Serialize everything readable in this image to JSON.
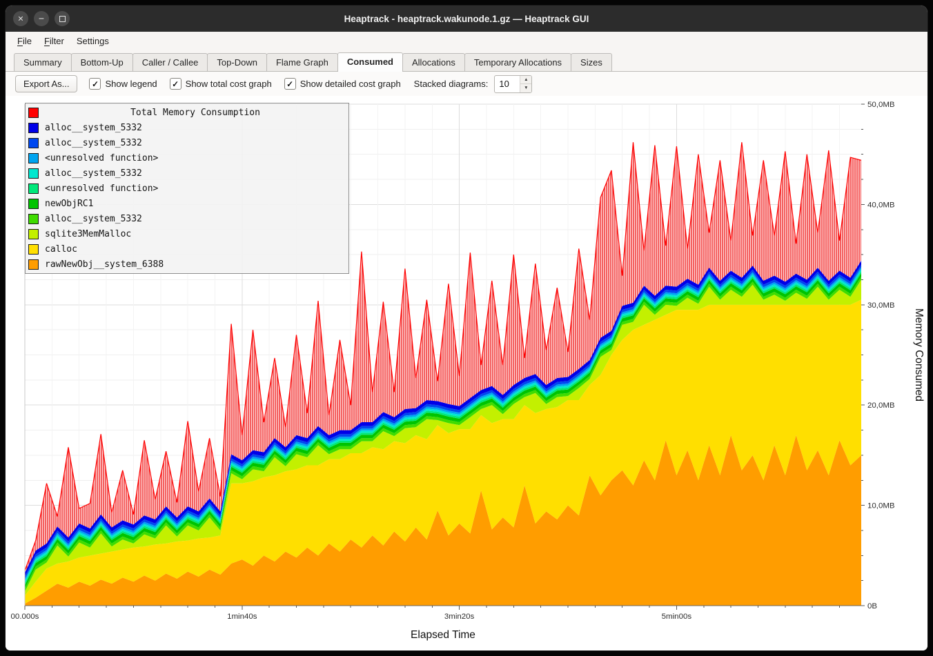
{
  "window": {
    "title": "Heaptrack - heaptrack.wakunode.1.gz — Heaptrack GUI"
  },
  "window_buttons": {
    "close": "×",
    "minimize": "−",
    "maximize": "□"
  },
  "menu": {
    "items": [
      {
        "label": "File",
        "accel": 0
      },
      {
        "label": "Filter",
        "accel": 0
      },
      {
        "label": "Settings",
        "accel": 6
      }
    ]
  },
  "tabs": {
    "items": [
      "Summary",
      "Bottom-Up",
      "Caller / Callee",
      "Top-Down",
      "Flame Graph",
      "Consumed",
      "Allocations",
      "Temporary Allocations",
      "Sizes"
    ],
    "active": "Consumed"
  },
  "toolbar": {
    "export_label": "Export As...",
    "checkboxes": [
      {
        "label": "Show legend",
        "checked": true
      },
      {
        "label": "Show total cost graph",
        "checked": true
      },
      {
        "label": "Show detailed cost graph",
        "checked": true
      }
    ],
    "stacked_label": "Stacked diagrams:",
    "stacked_value": "10"
  },
  "chart_data": {
    "type": "area",
    "stacked": true,
    "title": "Total Memory Consumption",
    "xlabel": "Elapsed Time",
    "ylabel": "Memory Consumed",
    "legend_position": "top-left",
    "grid": true,
    "x": {
      "start": 0,
      "step": 5,
      "count": 78,
      "unit": "seconds"
    },
    "xlim": [
      0,
      385
    ],
    "ylim_mb": [
      0,
      50
    ],
    "x_minor_step_s": 12.5,
    "y_minor_step_mb": 2.5,
    "x_ticks": [
      {
        "t": 0,
        "label": "00.000s"
      },
      {
        "t": 100,
        "label": "1min40s"
      },
      {
        "t": 200,
        "label": "3min20s"
      },
      {
        "t": 300,
        "label": "5min00s"
      }
    ],
    "y_ticks": [
      {
        "v": 0,
        "label": "0B"
      },
      {
        "v": 10,
        "label": "10,0MB"
      },
      {
        "v": 20,
        "label": "20,0MB"
      },
      {
        "v": 30,
        "label": "30,0MB"
      },
      {
        "v": 40,
        "label": "40,0MB"
      },
      {
        "v": 50,
        "label": "50,0MB"
      }
    ],
    "series": [
      {
        "name": "rawNewObj__system_6388",
        "color": "#ff9d00",
        "values": [
          0.2,
          0.8,
          1.5,
          2.2,
          1.8,
          2.4,
          2.0,
          2.6,
          2.2,
          2.8,
          2.4,
          3.0,
          2.5,
          3.2,
          2.7,
          3.4,
          2.9,
          3.6,
          3.1,
          4.2,
          4.6,
          4.0,
          5.0,
          4.4,
          5.4,
          4.8,
          5.8,
          5.0,
          6.2,
          5.4,
          6.6,
          5.8,
          7.0,
          6.0,
          7.4,
          6.4,
          7.8,
          6.6,
          9.5,
          7.0,
          8.2,
          7.2,
          11.5,
          7.6,
          8.8,
          7.8,
          12.0,
          8.2,
          9.4,
          8.6,
          10.0,
          9.0,
          13.0,
          11.0,
          12.5,
          13.5,
          12.0,
          14.5,
          12.5,
          16.5,
          13.0,
          15.5,
          12.5,
          16.0,
          13.0,
          17.0,
          13.5,
          15.0,
          12.5,
          16.0,
          13.0,
          17.0,
          13.5,
          15.5,
          13.0,
          16.5,
          14.0,
          15.0
        ]
      },
      {
        "name": "calloc",
        "color": "#ffdf00",
        "values": [
          0.8,
          1.6,
          2.2,
          2.0,
          2.6,
          2.4,
          3.0,
          2.6,
          3.2,
          2.8,
          3.4,
          2.9,
          3.6,
          3.0,
          3.7,
          3.1,
          3.8,
          3.2,
          3.9,
          8.0,
          7.6,
          8.4,
          7.8,
          8.6,
          8.0,
          8.8,
          8.2,
          9.0,
          8.4,
          9.2,
          8.6,
          9.4,
          8.8,
          9.6,
          9.0,
          9.8,
          9.2,
          10.0,
          8.5,
          10.2,
          9.4,
          10.4,
          7.5,
          10.6,
          9.8,
          10.8,
          8.0,
          11.0,
          10.2,
          11.2,
          10.5,
          11.5,
          9.0,
          12.0,
          12.5,
          13.0,
          15.5,
          13.5,
          16.0,
          12.5,
          16.5,
          14.0,
          17.0,
          14.0,
          17.0,
          13.0,
          16.5,
          15.0,
          17.5,
          14.0,
          17.0,
          13.0,
          16.5,
          14.5,
          17.0,
          13.5,
          16.0,
          15.5
        ]
      },
      {
        "name": "sqlite3MemMalloc",
        "color": "#c3f000",
        "values": [
          0.4,
          1.2,
          0.6,
          1.8,
          0.5,
          1.5,
          0.8,
          2.0,
          0.5,
          1.0,
          0.4,
          1.2,
          0.6,
          1.8,
          0.5,
          1.5,
          0.8,
          2.0,
          0.5,
          1.0,
          0.4,
          1.2,
          0.6,
          1.8,
          0.5,
          1.5,
          0.8,
          2.0,
          0.5,
          1.0,
          0.4,
          1.2,
          0.6,
          1.8,
          0.5,
          1.5,
          0.8,
          2.0,
          0.5,
          1.0,
          0.4,
          1.2,
          0.6,
          1.8,
          0.5,
          1.5,
          0.8,
          2.0,
          0.5,
          1.0,
          0.4,
          1.2,
          0.6,
          1.8,
          0.5,
          1.5,
          0.8,
          2.0,
          0.5,
          1.0,
          0.4,
          1.2,
          0.6,
          1.8,
          0.5,
          1.5,
          0.8,
          2.0,
          0.5,
          1.0,
          0.4,
          1.2,
          0.6,
          1.8,
          0.5,
          1.5,
          0.8,
          2.0
        ]
      },
      {
        "name": "alloc__system_5332",
        "color": "#3fdc00",
        "constant": 0.3
      },
      {
        "name": "newObjRC1",
        "color": "#00c400",
        "constant": 0.35
      },
      {
        "name": "<unresolved function>",
        "color": "#00e87a",
        "constant": 0.2
      },
      {
        "name": "alloc__system_5332",
        "color": "#00e8cf",
        "constant": 0.2
      },
      {
        "name": "<unresolved function>",
        "color": "#00a4f0",
        "constant": 0.2
      },
      {
        "name": "alloc__system_5332",
        "color": "#0048f0",
        "constant": 0.25
      },
      {
        "name": "alloc__system_5332",
        "color": "#0000e8",
        "constant": 0.4
      }
    ],
    "total": {
      "name": "Total Memory Consumption",
      "color": "#ff0000",
      "note": "total MB = sum of stacked series + above_stack_values",
      "above_stack_values": [
        0.2,
        1.0,
        6.0,
        1.0,
        9.0,
        1.5,
        2.5,
        8.0,
        1.5,
        5.0,
        1.0,
        7.5,
        2.0,
        5.5,
        1.5,
        8.5,
        2.0,
        6.0,
        1.5,
        13.0,
        2.5,
        12.0,
        3.0,
        8.0,
        2.0,
        10.0,
        2.5,
        12.5,
        2.0,
        9.0,
        2.5,
        17.0,
        3.0,
        11.0,
        2.5,
        14.0,
        3.0,
        10.0,
        2.0,
        12.0,
        3.0,
        14.5,
        2.5,
        10.5,
        3.0,
        13.0,
        2.0,
        11.0,
        3.5,
        9.0,
        2.5,
        12.0,
        4.0,
        14.0,
        16.0,
        3.0,
        16.0,
        3.5,
        15.0,
        4.0,
        14.0,
        3.0,
        13.0,
        3.5,
        12.0,
        3.0,
        13.5,
        3.0,
        12.0,
        4.0,
        13.0,
        3.0,
        12.5,
        3.5,
        13.0,
        3.0,
        12.0,
        10.0
      ]
    }
  }
}
